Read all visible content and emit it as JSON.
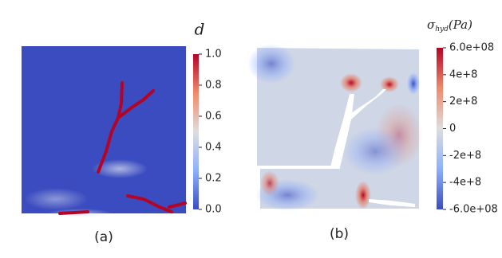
{
  "panels": [
    {
      "caption": "(a)",
      "colorbar": {
        "title": "d",
        "lim": [
          0,
          1
        ],
        "ticks": [
          {
            "value": 1,
            "label": "1.0"
          },
          {
            "value": 0.8,
            "label": "0.8"
          },
          {
            "value": 0.6,
            "label": "0.6"
          },
          {
            "value": 0.4,
            "label": "0.4"
          },
          {
            "value": 0.2,
            "label": "0.2"
          },
          {
            "value": 0,
            "label": "0.0"
          }
        ]
      }
    },
    {
      "caption": "(b)",
      "colorbar": {
        "title": {
          "symbol": "σ",
          "subscript": "hyd",
          "unit": "(Pa)"
        },
        "lim": [
          -600000000,
          600000000
        ],
        "ticks": [
          {
            "value": 600000000,
            "label": "6.0e+08"
          },
          {
            "value": 400000000,
            "label": "4e+8"
          },
          {
            "value": 200000000,
            "label": "2e+8"
          },
          0,
          {
            "value": -200000000,
            "label": "-2e+8"
          },
          {
            "value": -400000000,
            "label": "-4e+8"
          },
          {
            "value": -600000000,
            "label": "-6.0e+08"
          }
        ]
      }
    }
  ]
}
